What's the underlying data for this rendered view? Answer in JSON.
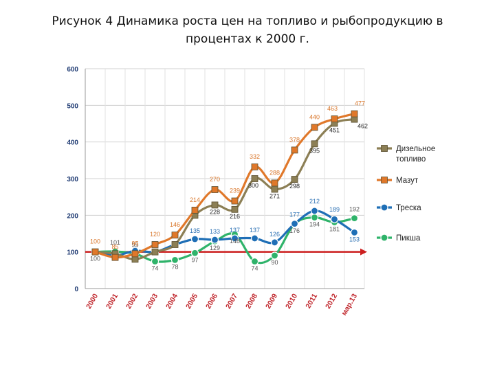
{
  "title": {
    "line1": "Рисунок 4 Динамика роста цен на топливо и рыбопродукцию в",
    "line2": "процентах к 2000 г."
  },
  "chart_data": {
    "type": "line",
    "title": "Рисунок 4 Динамика роста цен на топливо и рыбопродукцию в процентах к 2000 г.",
    "xlabel": "",
    "ylabel": "",
    "ylim": [
      0,
      600
    ],
    "yticks": [
      "0",
      "100",
      "200",
      "300",
      "400",
      "500",
      "600"
    ],
    "ytick_values": [
      0,
      100,
      200,
      300,
      400,
      500,
      600
    ],
    "categories": [
      "2000",
      "2001",
      "2002",
      "2003",
      "2004",
      "2005",
      "2006",
      "2007",
      "2008",
      "2009",
      "2010",
      "2011",
      "2012",
      "мар.13"
    ],
    "grid": true,
    "legend_position": "right",
    "baseline": {
      "value": 100,
      "color": "#cc1f1f"
    },
    "series": [
      {
        "name": "Дизельное топливо",
        "color": "#8c7f55",
        "labelColor": "#222222",
        "marker": "square",
        "values": [
          100,
          95,
          80,
          100,
          120,
          200,
          228,
          216,
          300,
          271,
          298,
          395,
          451,
          462
        ],
        "labels": {
          "6": "228",
          "7": "216",
          "8": "300",
          "9": "271",
          "10": "298",
          "11": "395",
          "12": "451",
          "13": "462"
        }
      },
      {
        "name": "Мазут",
        "color": "#e0782a",
        "labelColor": "#d9762a",
        "marker": "square",
        "values": [
          100,
          85,
          95,
          120,
          146,
          214,
          270,
          239,
          332,
          288,
          378,
          440,
          463,
          477
        ],
        "labels": {
          "0": "100",
          "1": "85",
          "2": "95",
          "3": "120",
          "4": "146",
          "5": "214",
          "6": "270",
          "7": "239",
          "8": "332",
          "9": "288",
          "10": "378",
          "11": "440",
          "12": "463",
          "13": "477"
        }
      },
      {
        "name": "Треска",
        "color": "#1f6fb6",
        "labelColor": "#2a6fb3",
        "marker": "circle",
        "values": [
          100,
          90,
          103,
          100,
          120,
          135,
          133,
          137,
          137,
          126,
          177,
          212,
          189,
          153
        ],
        "labels": {
          "5": "135",
          "6": "133",
          "7": "137",
          "8": "137",
          "9": "126",
          "10": "177",
          "11": "212",
          "12": "189",
          "13": "153"
        }
      },
      {
        "name": "Пикша",
        "color": "#2fb36a",
        "labelColor": "#555555",
        "marker": "circle",
        "values": [
          100,
          101,
          95,
          74,
          78,
          97,
          129,
          148,
          74,
          90,
          176,
          194,
          181,
          192
        ],
        "labels": {
          "0": "100",
          "1": "101",
          "2": "95",
          "3": "74",
          "4": "78",
          "5": "97",
          "6": "129",
          "7": "148",
          "8": "74",
          "9": "90",
          "10": "176",
          "11": "194",
          "12": "181",
          "13": "192"
        }
      }
    ]
  }
}
